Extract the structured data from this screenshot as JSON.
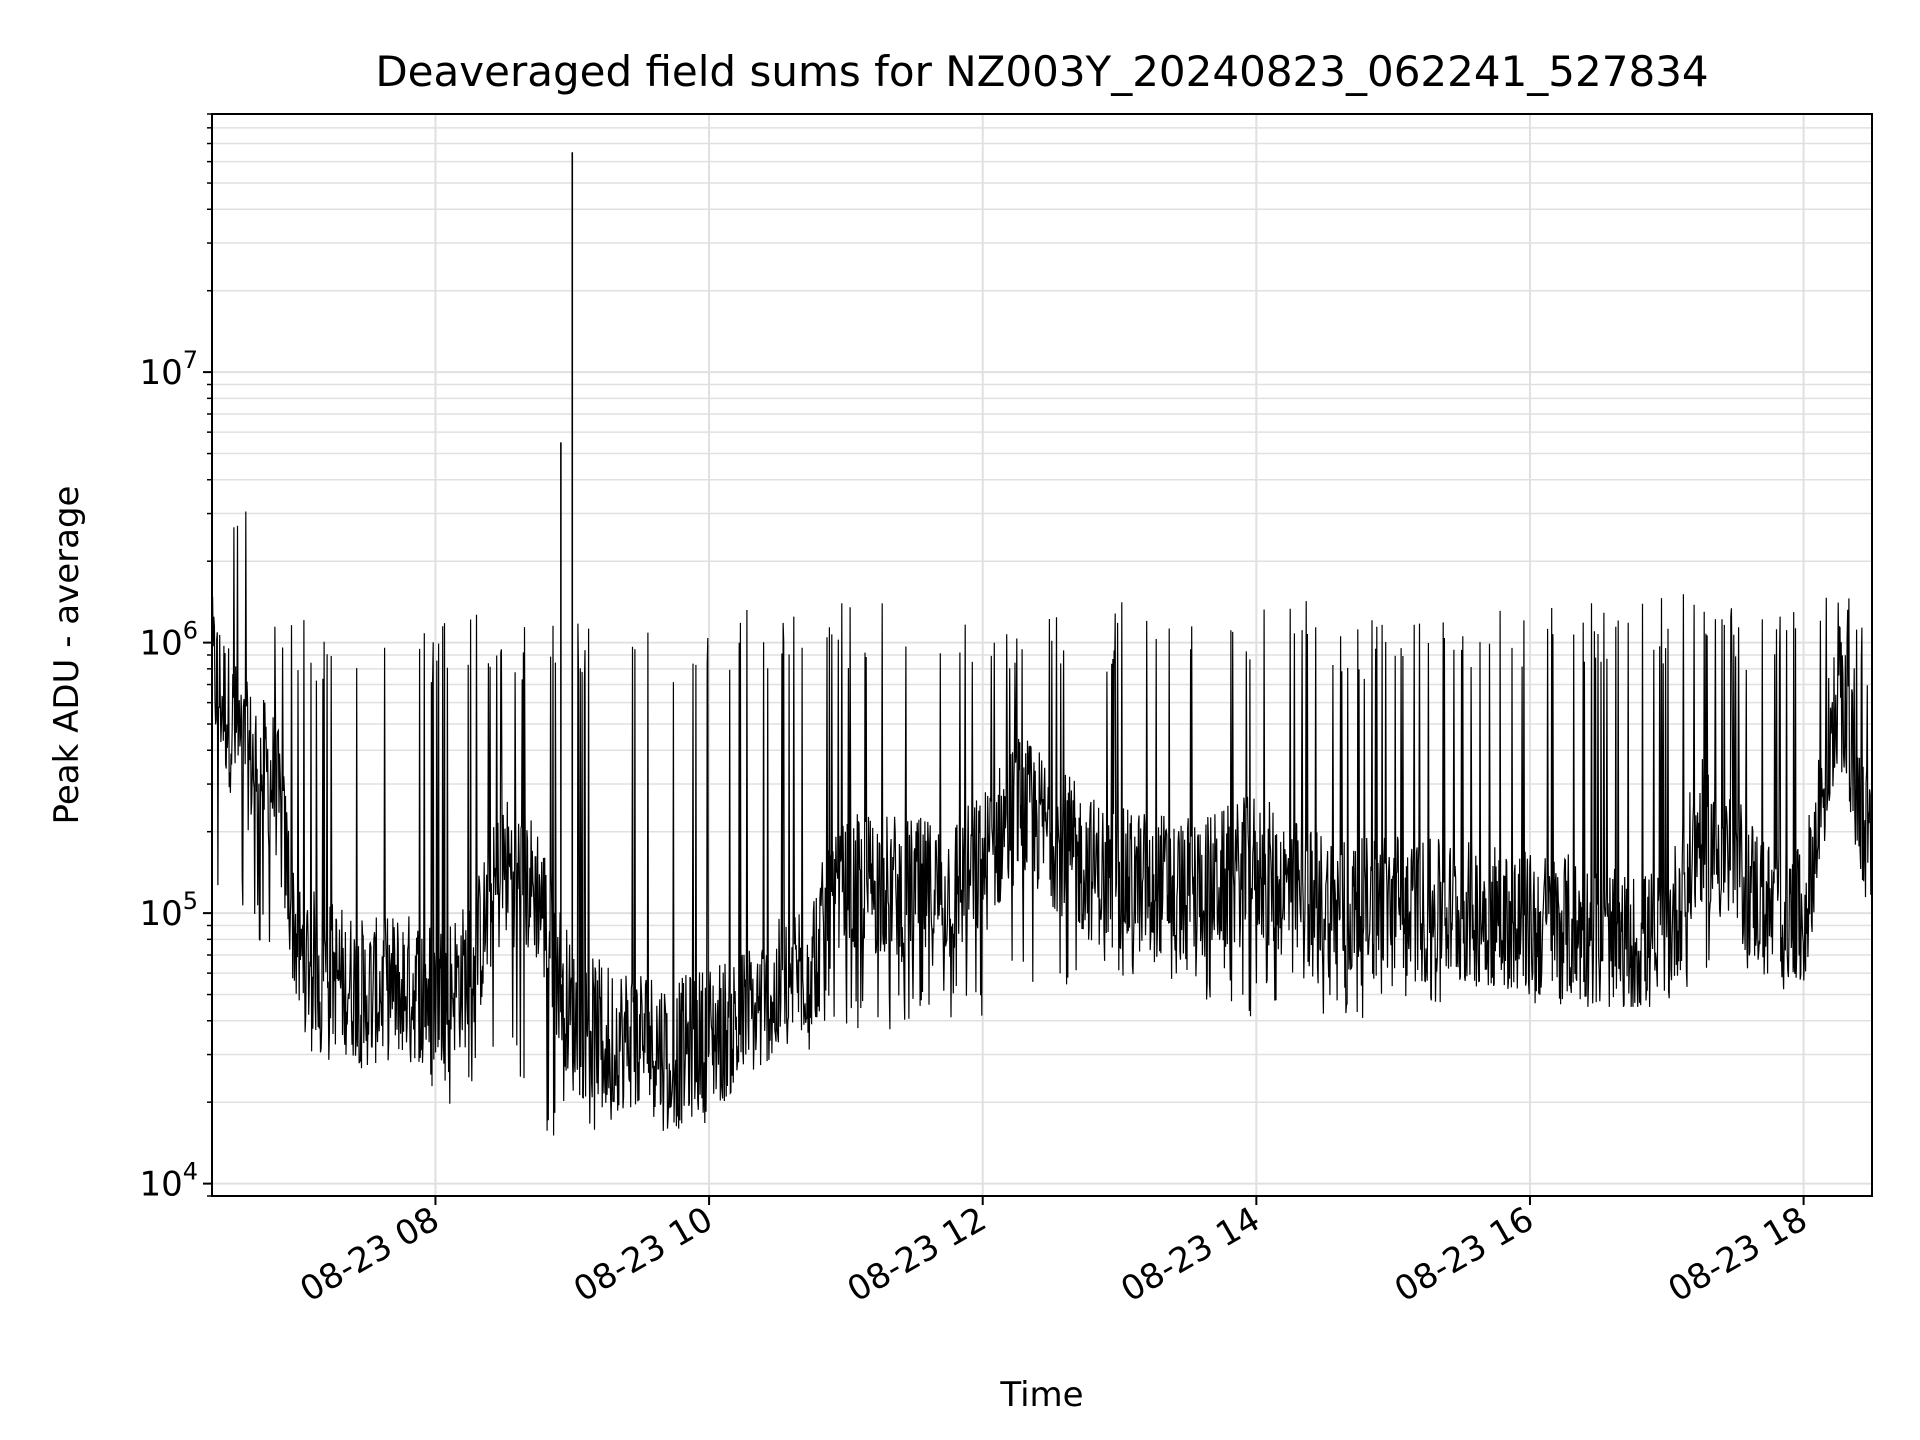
{
  "chart_data": {
    "type": "line",
    "title": "Deaveraged field sums for NZ003Y_20240823_062241_527834",
    "xlabel": "Time",
    "ylabel": "Peak ADU - average",
    "yscale": "log",
    "ylim": [
      9000,
      90000000
    ],
    "xlim": [
      "2024-08-23 06:22",
      "2024-08-23 18:30"
    ],
    "grid": true,
    "line_color": "#000000",
    "grid_color": "#e0e0e0",
    "x_ticks": [
      {
        "t": "2024-08-23 08:00",
        "label": "08-23 08"
      },
      {
        "t": "2024-08-23 10:00",
        "label": "08-23 10"
      },
      {
        "t": "2024-08-23 12:00",
        "label": "08-23 12"
      },
      {
        "t": "2024-08-23 14:00",
        "label": "08-23 14"
      },
      {
        "t": "2024-08-23 16:00",
        "label": "08-23 16"
      },
      {
        "t": "2024-08-23 18:00",
        "label": "08-23 18"
      }
    ],
    "y_ticks": [
      {
        "value": 10000,
        "base": "10",
        "exp": "4"
      },
      {
        "value": 100000,
        "base": "10",
        "exp": "5"
      },
      {
        "value": 1000000,
        "base": "10",
        "exp": "6"
      },
      {
        "value": 10000000,
        "base": "10",
        "exp": "7"
      }
    ],
    "series": [
      {
        "x": [
          "2024-08-23 06:22",
          "2024-08-23 06:35",
          "2024-08-23 06:50",
          "2024-08-23 07:00",
          "2024-08-23 07:15",
          "2024-08-23 07:30",
          "2024-08-23 07:45",
          "2024-08-23 08:00",
          "2024-08-23 08:15",
          "2024-08-23 08:30",
          "2024-08-23 08:45",
          "2024-08-23 09:00",
          "2024-08-23 09:15",
          "2024-08-23 09:30",
          "2024-08-23 09:45",
          "2024-08-23 10:00",
          "2024-08-23 10:15",
          "2024-08-23 10:30",
          "2024-08-23 10:45",
          "2024-08-23 11:00",
          "2024-08-23 11:15",
          "2024-08-23 11:30",
          "2024-08-23 11:45",
          "2024-08-23 12:00",
          "2024-08-23 12:15",
          "2024-08-23 12:30",
          "2024-08-23 12:45",
          "2024-08-23 13:00",
          "2024-08-23 13:15",
          "2024-08-23 13:30",
          "2024-08-23 13:45",
          "2024-08-23 14:00",
          "2024-08-23 14:15",
          "2024-08-23 14:30",
          "2024-08-23 14:45",
          "2024-08-23 15:00",
          "2024-08-23 15:15",
          "2024-08-23 15:30",
          "2024-08-23 15:45",
          "2024-08-23 16:00",
          "2024-08-23 16:15",
          "2024-08-23 16:30",
          "2024-08-23 16:45",
          "2024-08-23 17:00",
          "2024-08-23 17:15",
          "2024-08-23 17:30",
          "2024-08-23 17:45",
          "2024-08-23 18:00",
          "2024-08-23 18:15",
          "2024-08-23 18:30"
        ],
        "baseline": [
          800000,
          400000,
          300000,
          70000,
          60000,
          50000,
          55000,
          50000,
          60000,
          150000,
          120000,
          40000,
          35000,
          35000,
          30000,
          35000,
          40000,
          50000,
          70000,
          120000,
          130000,
          120000,
          120000,
          150000,
          250000,
          200000,
          150000,
          130000,
          130000,
          120000,
          130000,
          150000,
          120000,
          110000,
          100000,
          110000,
          100000,
          100000,
          100000,
          90000,
          90000,
          80000,
          75000,
          80000,
          200000,
          150000,
          100000,
          90000,
          700000,
          150000
        ],
        "high": [
          2500000,
          4200000,
          1400000,
          1400000,
          1000000,
          1000000,
          1300000,
          1200000,
          1300000,
          1300000,
          1200000,
          1200000,
          1300000,
          1100000,
          1100000,
          1400000,
          1400000,
          1300000,
          1400000,
          1400000,
          1400000,
          1500000,
          1500000,
          1400000,
          1200000,
          1300000,
          1200000,
          1400000,
          1800000,
          1400000,
          1300000,
          1300000,
          1600000,
          1400000,
          1200000,
          1300000,
          1300000,
          1400000,
          1300000,
          1400000,
          1400000,
          1400000,
          1400000,
          1500000,
          2000000,
          1400000,
          1300000,
          1300000,
          1900000,
          1000000
        ],
        "low": [
          110000,
          100000,
          60000,
          30000,
          28000,
          25000,
          30000,
          20000,
          19000,
          40000,
          14000,
          15000,
          16000,
          17000,
          15000,
          17000,
          25000,
          30000,
          30000,
          35000,
          35000,
          40000,
          40000,
          40000,
          50000,
          45000,
          50000,
          55000,
          60000,
          50000,
          45000,
          40000,
          45000,
          40000,
          40000,
          50000,
          45000,
          45000,
          45000,
          45000,
          45000,
          45000,
          45000,
          45000,
          50000,
          50000,
          50000,
          55000,
          320000,
          90000
        ],
        "spikes": [
          {
            "t": "2024-08-23 08:55",
            "value": 5500000
          },
          {
            "t": "2024-08-23 09:00",
            "value": 65000000
          }
        ]
      }
    ]
  }
}
